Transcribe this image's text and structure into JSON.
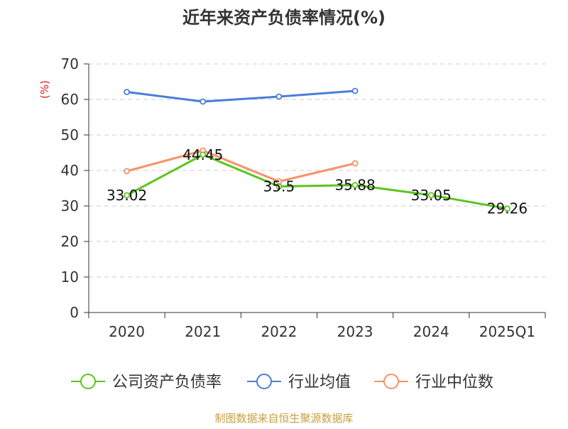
{
  "chart_data": {
    "type": "line",
    "title": "近年来资产负债率情况(%)",
    "ylabel": "(%)",
    "xlabel": "",
    "categories": [
      "2020",
      "2021",
      "2022",
      "2023",
      "2024",
      "2025Q1"
    ],
    "ylim": [
      0,
      70
    ],
    "yticks": [
      0,
      10,
      20,
      30,
      40,
      50,
      60,
      70
    ],
    "grid": true,
    "legend_position": "bottom",
    "series": [
      {
        "name": "公司资产负债率",
        "color": "#5cc41e",
        "values": [
          33.02,
          44.45,
          35.5,
          35.88,
          33.05,
          29.26
        ],
        "labels": [
          "33.02",
          "44.45",
          "35.5",
          "35.88",
          "33.05",
          "29.26"
        ]
      },
      {
        "name": "行业均值",
        "color": "#4a7fd6",
        "values": [
          62.1,
          59.4,
          60.8,
          62.4,
          null,
          null
        ]
      },
      {
        "name": "行业中位数",
        "color": "#f5926a",
        "values": [
          39.8,
          45.6,
          36.9,
          42.0,
          null,
          null
        ]
      }
    ],
    "source": "制图数据来自恒生聚源数据库"
  },
  "colors": {
    "title": "#333333",
    "axis": "#333333",
    "ylabel": "#e02020",
    "grid": "#cccccc",
    "source": "#c8a040"
  }
}
